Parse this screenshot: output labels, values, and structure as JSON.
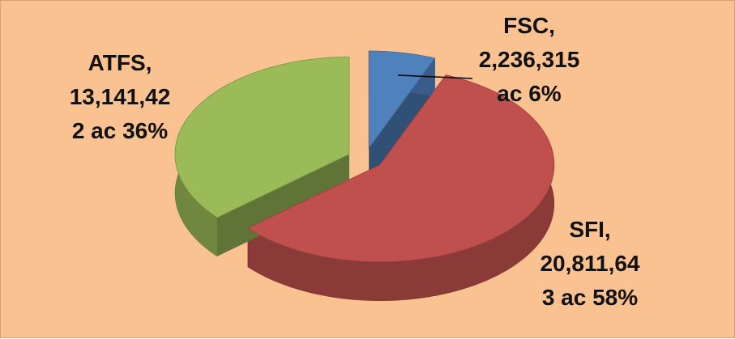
{
  "chart_data": {
    "type": "pie3d",
    "categories": [
      "FSC",
      "SFI",
      "ATFS"
    ],
    "values": [
      2236315,
      20811643,
      13141422
    ],
    "value_labels": [
      "2,236,315 ac 6%",
      "20,811,643 ac 58%",
      "13,141,422 ac 36%"
    ],
    "colors": [
      "#4f81bd",
      "#c0504d",
      "#9bbb59"
    ]
  }
}
